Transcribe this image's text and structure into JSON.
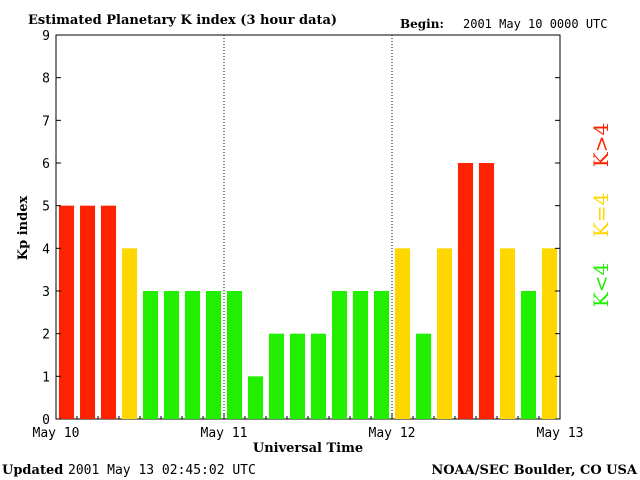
{
  "chart_data": {
    "type": "bar",
    "title": "Estimated Planetary K index (3 hour data)",
    "begin_label": "Begin:",
    "begin_value": "2001 May 10 0000 UTC",
    "ylabel": "Kp index",
    "xlabel": "Universal Time",
    "ylim": [
      0,
      9
    ],
    "yticks": [
      0,
      1,
      2,
      3,
      4,
      5,
      6,
      7,
      8,
      9
    ],
    "xlim": [
      0,
      72
    ],
    "x_tick_labels": [
      {
        "hour": 0,
        "label": "May 10"
      },
      {
        "hour": 24,
        "label": "May 11"
      },
      {
        "hour": 48,
        "label": "May 12"
      },
      {
        "hour": 72,
        "label": "May 13"
      }
    ],
    "day_separators_hours": [
      24,
      48
    ],
    "bar_hours": 3,
    "values": [
      5,
      5,
      5,
      4,
      3,
      3,
      3,
      3,
      3,
      1,
      2,
      2,
      2,
      3,
      3,
      3,
      4,
      2,
      4,
      6,
      6,
      4,
      3,
      4
    ],
    "legend": [
      {
        "label": "K<4",
        "color": "#22ee00"
      },
      {
        "label": "K=4",
        "color": "#ffd700"
      },
      {
        "label": "K>4",
        "color": "#ff2200"
      }
    ],
    "colors": {
      "low": "#22ee00",
      "equal": "#ffd700",
      "high": "#ff2200"
    },
    "grid": false
  },
  "footer": {
    "updated_label": "Updated",
    "updated_value": "2001 May 13 02:45:02 UTC",
    "source": "NOAA/SEC Boulder, CO USA"
  }
}
